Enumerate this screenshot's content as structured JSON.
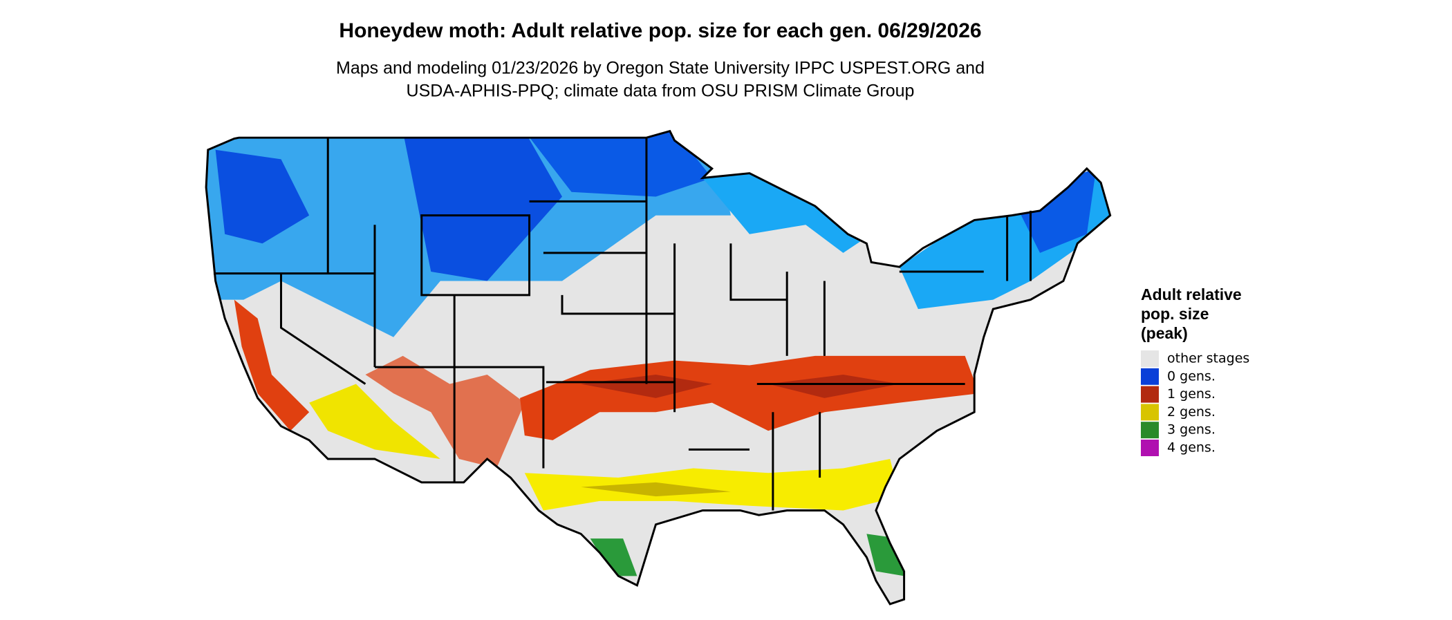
{
  "title": "Honeydew moth: Adult relative pop. size for each gen. 06/29/2026",
  "subtitle": [
    "Maps and modeling 01/23/2026 by Oregon State University IPPC USPEST.ORG and",
    "USDA-APHIS-PPQ; climate data from OSU PRISM Climate Group"
  ],
  "legend": {
    "title": [
      "Adult relative",
      "pop. size",
      "(peak)"
    ],
    "items": [
      {
        "label": "other stages",
        "color": "#e5e5e5"
      },
      {
        "label": "0 gens.",
        "color": "#0a3fd8"
      },
      {
        "label": "1 gens.",
        "color": "#b22a10"
      },
      {
        "label": "2 gens.",
        "color": "#d8c400"
      },
      {
        "label": "3 gens.",
        "color": "#2a8a2a"
      },
      {
        "label": "4 gens.",
        "color": "#b010b0"
      }
    ]
  }
}
